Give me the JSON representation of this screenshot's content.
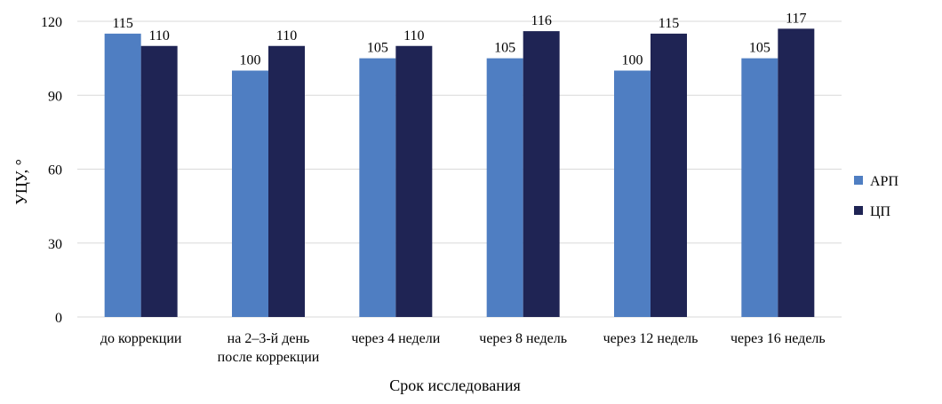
{
  "chart_data": {
    "type": "bar",
    "title": "",
    "xlabel": "Срок исследования",
    "ylabel": "УЦУ, °",
    "ylim": [
      0,
      120
    ],
    "yticks": [
      0,
      30,
      60,
      90,
      120
    ],
    "grid": true,
    "legend_position": "right",
    "categories": [
      [
        "до коррекции"
      ],
      [
        "на 2–3-й день",
        "после коррекции"
      ],
      [
        "через 4 недели"
      ],
      [
        "через 8 недель"
      ],
      [
        "через 12 недель"
      ],
      [
        "через 16 недель"
      ]
    ],
    "series": [
      {
        "name": "АРП",
        "color": "#4F7EC2",
        "values": [
          115,
          100,
          105,
          105,
          100,
          105
        ]
      },
      {
        "name": "ЦП",
        "color": "#1F2454",
        "values": [
          110,
          110,
          110,
          116,
          115,
          117
        ]
      }
    ],
    "gridline_color": "#D9D9D9"
  }
}
